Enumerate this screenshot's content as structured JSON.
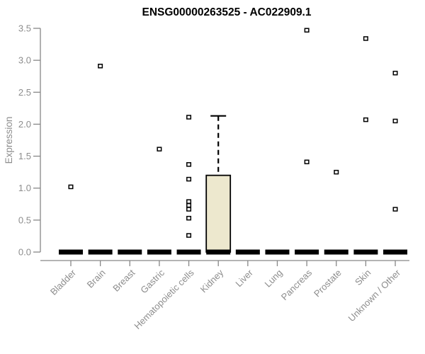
{
  "colors": {
    "background": "#ffffff",
    "title_color": "#000000",
    "axis_color": "#878787",
    "tick_label_color": "#8d8d8d",
    "box_fill": "#ede8ce",
    "box_border": "#000000",
    "median_color": "#000000",
    "whisker_color": "#000000",
    "outlier_border": "#000000",
    "outlier_fill": "#ffffff"
  },
  "chart_data": {
    "type": "boxplot",
    "title": "ENSG00000263525 - AC022909.1",
    "xlabel": "",
    "ylabel": "Expression",
    "ylim": [
      0,
      3.5
    ],
    "ytick_labels": [
      "0.0",
      "0.5",
      "1.0",
      "1.5",
      "2.0",
      "2.5",
      "3.0",
      "3.5"
    ],
    "grid": "off",
    "legend": "none",
    "categories": [
      "Bladder",
      "Brain",
      "Breast",
      "Gastric",
      "Hematopoietic cells",
      "Kidney",
      "Liver",
      "Lung",
      "Pancreas",
      "Prostate",
      "Skin",
      "Unknown / Other"
    ],
    "boxes": [
      {
        "category": "Bladder",
        "median": 0,
        "q1": 0,
        "q3": 0,
        "whisker_low": 0,
        "whisker_high": 0,
        "outliers": [
          1.02
        ]
      },
      {
        "category": "Brain",
        "median": 0,
        "q1": 0,
        "q3": 0,
        "whisker_low": 0,
        "whisker_high": 0,
        "outliers": [
          2.91
        ]
      },
      {
        "category": "Breast",
        "median": 0,
        "q1": 0,
        "q3": 0,
        "whisker_low": 0,
        "whisker_high": 0,
        "outliers": []
      },
      {
        "category": "Gastric",
        "median": 0,
        "q1": 0,
        "q3": 0,
        "whisker_low": 0,
        "whisker_high": 0,
        "outliers": [
          1.61
        ]
      },
      {
        "category": "Hematopoietic cells",
        "median": 0,
        "q1": 0,
        "q3": 0,
        "whisker_low": 0,
        "whisker_high": 0,
        "outliers": [
          2.11,
          1.37,
          1.14,
          0.79,
          0.73,
          0.67,
          0.53,
          0.26
        ]
      },
      {
        "category": "Kidney",
        "median": 0,
        "q1": 0,
        "q3": 1.2,
        "whisker_low": 0,
        "whisker_high": 2.13,
        "outliers": []
      },
      {
        "category": "Liver",
        "median": 0,
        "q1": 0,
        "q3": 0,
        "whisker_low": 0,
        "whisker_high": 0,
        "outliers": []
      },
      {
        "category": "Lung",
        "median": 0,
        "q1": 0,
        "q3": 0,
        "whisker_low": 0,
        "whisker_high": 0,
        "outliers": []
      },
      {
        "category": "Pancreas",
        "median": 0,
        "q1": 0,
        "q3": 0,
        "whisker_low": 0,
        "whisker_high": 0,
        "outliers": [
          3.47,
          1.41
        ]
      },
      {
        "category": "Prostate",
        "median": 0,
        "q1": 0,
        "q3": 0,
        "whisker_low": 0,
        "whisker_high": 0,
        "outliers": [
          1.25
        ]
      },
      {
        "category": "Skin",
        "median": 0,
        "q1": 0,
        "q3": 0,
        "whisker_low": 0,
        "whisker_high": 0,
        "outliers": [
          3.34,
          2.07
        ]
      },
      {
        "category": "Unknown / Other",
        "median": 0,
        "q1": 0,
        "q3": 0,
        "whisker_low": 0,
        "whisker_high": 0,
        "outliers": [
          2.8,
          2.05,
          0.67
        ]
      }
    ]
  }
}
